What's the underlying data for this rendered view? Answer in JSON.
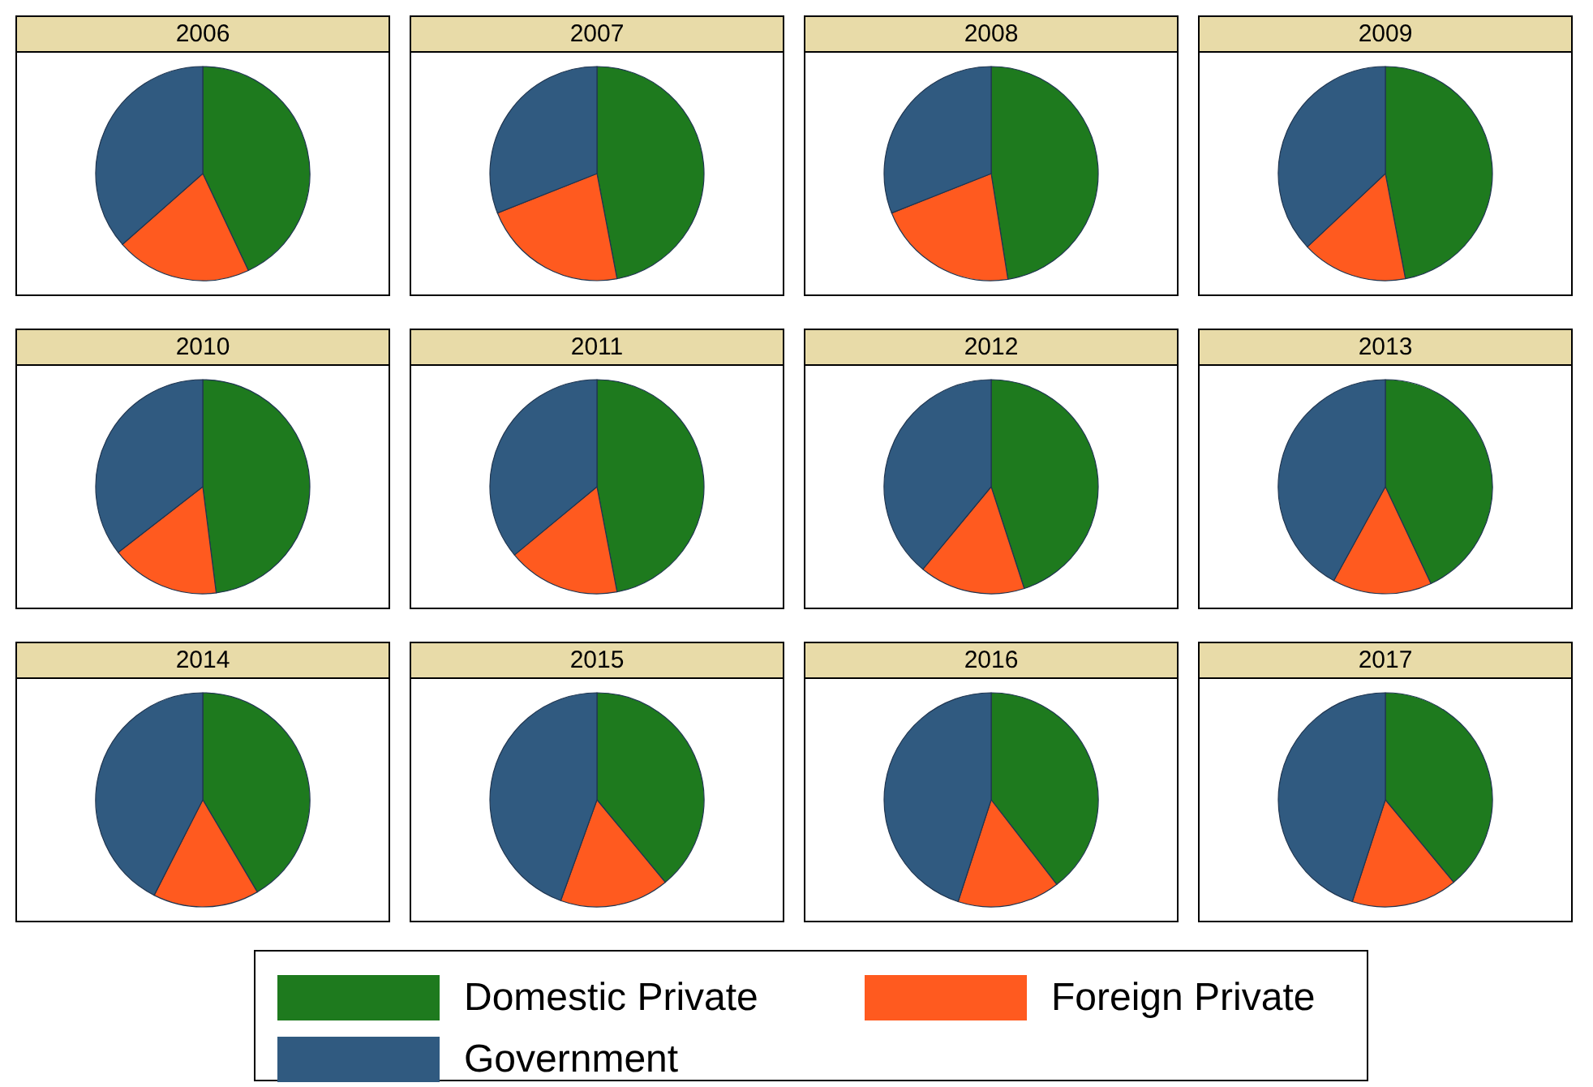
{
  "chart_data": {
    "type": "pie",
    "categories": [
      "Domestic Private",
      "Foreign Private",
      "Government"
    ],
    "colors": [
      "#1e7a1e",
      "#ff5a1f",
      "#305a80"
    ],
    "legend": "bottom",
    "series": [
      {
        "name": "2006",
        "values": [
          43,
          20.5,
          36.5
        ]
      },
      {
        "name": "2007",
        "values": [
          47,
          22,
          31
        ]
      },
      {
        "name": "2008",
        "values": [
          47.5,
          21.5,
          31
        ]
      },
      {
        "name": "2009",
        "values": [
          47,
          16,
          37
        ]
      },
      {
        "name": "2010",
        "values": [
          48,
          16.5,
          35.5
        ]
      },
      {
        "name": "2011",
        "values": [
          47,
          17,
          36
        ]
      },
      {
        "name": "2012",
        "values": [
          45,
          16,
          39
        ]
      },
      {
        "name": "2013",
        "values": [
          43,
          15,
          42
        ]
      },
      {
        "name": "2014",
        "values": [
          41.5,
          16,
          42.5
        ]
      },
      {
        "name": "2015",
        "values": [
          39,
          16.5,
          44.5
        ]
      },
      {
        "name": "2016",
        "values": [
          39.5,
          15.5,
          45
        ]
      },
      {
        "name": "2017",
        "values": [
          39,
          16,
          45
        ]
      }
    ]
  }
}
